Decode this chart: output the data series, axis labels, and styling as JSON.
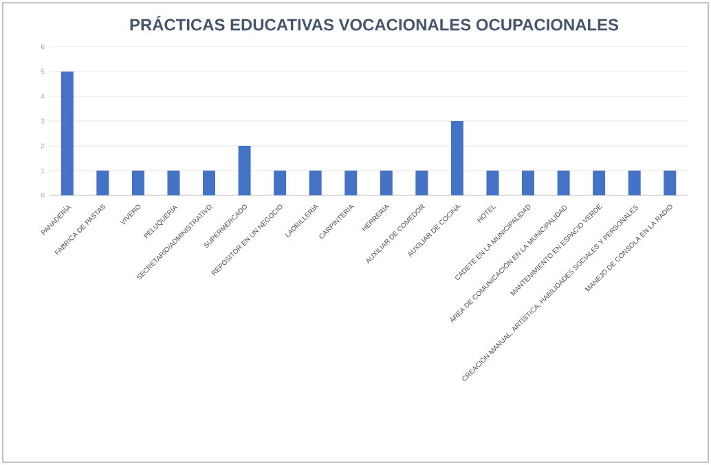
{
  "chart_data": {
    "type": "bar",
    "title": "PRÁCTICAS EDUCATIVAS VOCACIONALES OCUPACIONALES",
    "categories": [
      "PANADERÍA",
      "FABRICA DE PASTAS",
      "VIVERO",
      "PELUQUERÍA",
      "SECRETARIO/ADMINISTRATIVO",
      "SUPERMERCADO",
      "REPOSITOR EN UN NEGOCIO",
      "LADRILLERIA",
      "CARPINTERIA",
      "HERRERIA",
      "AUXILIAR DE COMEDOR",
      "AUXILIAR DE COCINA",
      "HOTEL",
      "CADETE EN LA MUNICIPALIDAD",
      "ÁREA DE COMUNICACIÓN  EN LA MUNICIPALIDAD",
      "MANTENIMIENTO EN ESPACIO VERDE",
      "CREACIÓN MANUAL, ARTÍSTICA, HABILIDADES SOCIALES Y PERSONALES",
      "MANEJO DE CONSOLA EN LA RADIO"
    ],
    "values": [
      5,
      1,
      1,
      1,
      1,
      2,
      1,
      1,
      1,
      1,
      1,
      3,
      1,
      1,
      1,
      1,
      1,
      1
    ],
    "color": "#4472c4",
    "ylim": [
      0,
      6
    ],
    "yticks": [
      0,
      1,
      2,
      3,
      4,
      5,
      6
    ],
    "grid": "y"
  }
}
